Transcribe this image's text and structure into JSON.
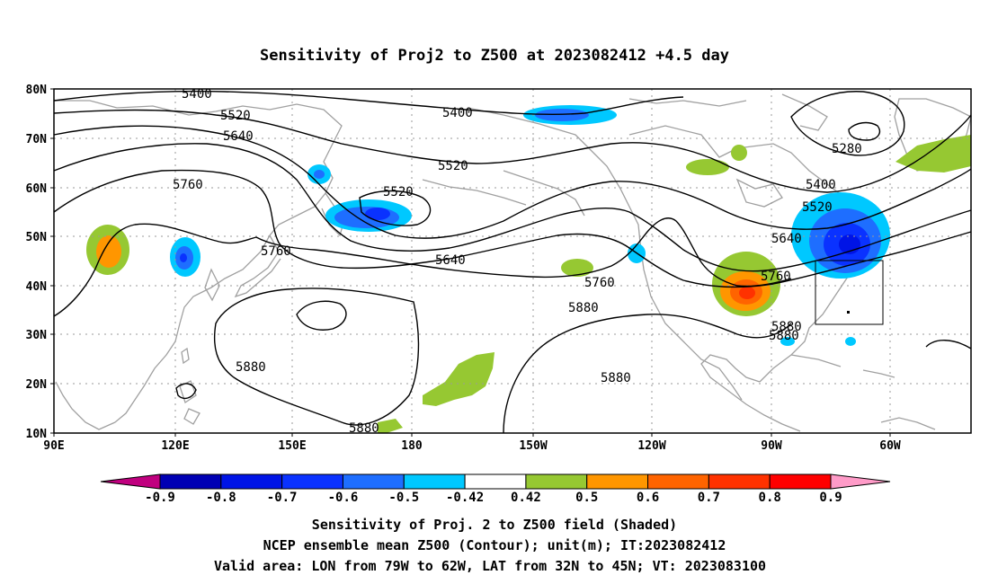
{
  "title": "Sensitivity of Proj2 to Z500 at 2023082412 +4.5 day",
  "y_axis_labels": [
    "80N",
    "70N",
    "60N",
    "50N",
    "40N",
    "30N",
    "20N",
    "10N"
  ],
  "x_axis_labels": [
    "90E",
    "120E",
    "150E",
    "180",
    "150W",
    "120W",
    "90W",
    "60W"
  ],
  "contour_labels": [
    {
      "id": "c5400a",
      "text": "5400"
    },
    {
      "id": "c5520a",
      "text": "5520"
    },
    {
      "id": "c5640a",
      "text": "5640"
    },
    {
      "id": "c5760a",
      "text": "5760"
    },
    {
      "id": "c5400b",
      "text": "5400"
    },
    {
      "id": "c5520b",
      "text": "5520"
    },
    {
      "id": "c5520c",
      "text": "5520"
    },
    {
      "id": "c5760b",
      "text": "5760"
    },
    {
      "id": "c5640b",
      "text": "5640"
    },
    {
      "id": "c5760c",
      "text": "5760"
    },
    {
      "id": "c5880a",
      "text": "5880"
    },
    {
      "id": "c5880b",
      "text": "5880"
    },
    {
      "id": "c5880c",
      "text": "5880"
    },
    {
      "id": "c5880d",
      "text": "5880"
    },
    {
      "id": "c5280",
      "text": "5280"
    },
    {
      "id": "c5400c",
      "text": "5400"
    },
    {
      "id": "c5520d",
      "text": "5520"
    },
    {
      "id": "c5640c",
      "text": "5640"
    },
    {
      "id": "c5760d",
      "text": "5760"
    },
    {
      "id": "c5880e",
      "text": "5880"
    },
    {
      "id": "c5880f",
      "text": "5880"
    }
  ],
  "colorbar": {
    "colors": [
      "#c0007f",
      "#0000b4",
      "#0014e6",
      "#0a32ff",
      "#1e6eff",
      "#00c8ff",
      "#ffffff",
      "#96c832",
      "#ff9600",
      "#ff6400",
      "#ff3200",
      "#ff0000",
      "#ff9bc8"
    ],
    "labels": [
      "-0.9",
      "-0.8",
      "-0.7",
      "-0.6",
      "-0.5",
      "-0.42",
      "0.42",
      "0.5",
      "0.6",
      "0.7",
      "0.8",
      "0.9"
    ]
  },
  "caption": {
    "line1": "Sensitivity of Proj. 2 to Z500 field (Shaded)",
    "line2": "NCEP ensemble mean Z500 (Contour); unit(m); IT:2023082412",
    "line3": "Valid area: LON from 79W to 62W, LAT from 32N to 45N; VT: 2023083100"
  }
}
